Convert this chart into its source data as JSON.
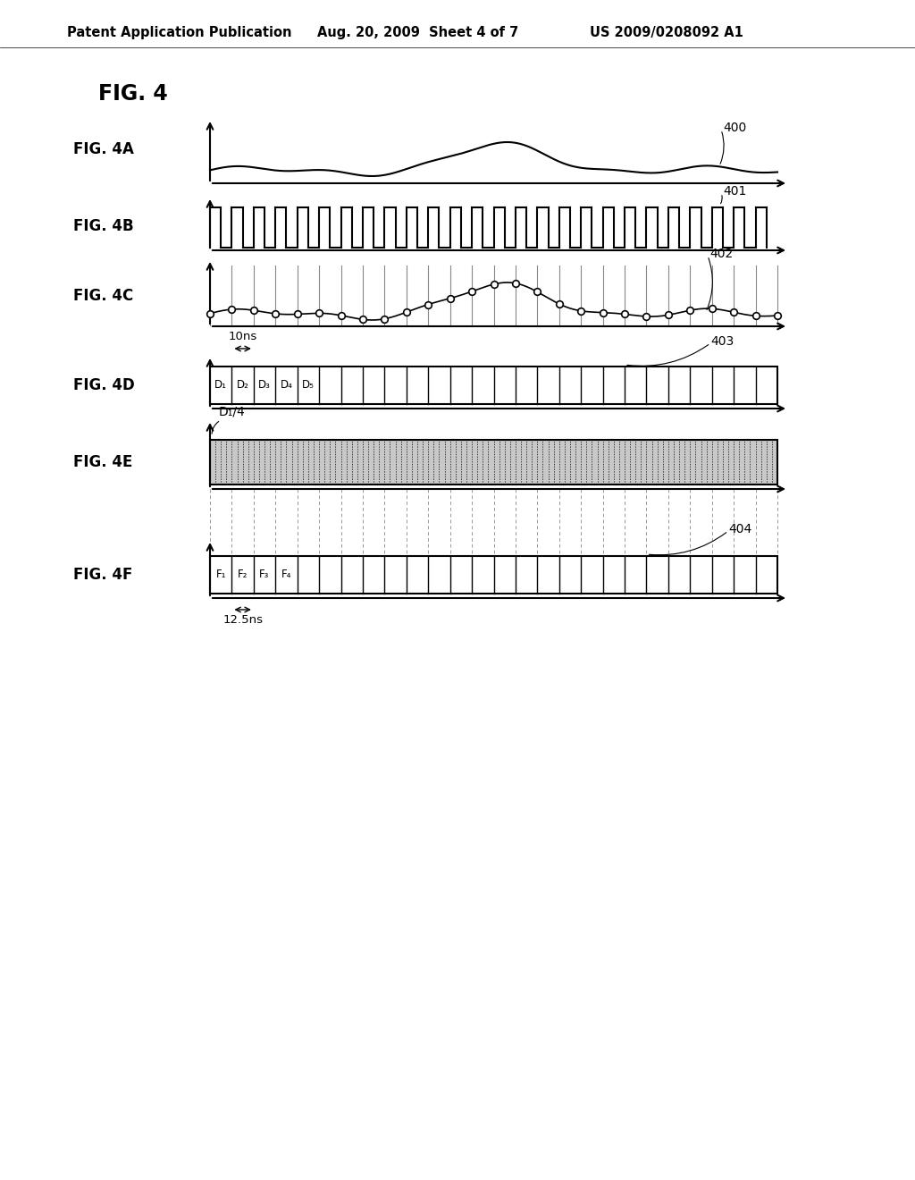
{
  "title": "FIG. 4",
  "header_left": "Patent Application Publication",
  "header_center": "Aug. 20, 2009  Sheet 4 of 7",
  "header_right": "US 2009/0208092 A1",
  "background_color": "#ffffff",
  "annotation_10ns": "10ns",
  "annotation_125ns": "12.5ns",
  "d_label": "D₁/4",
  "d_cells": [
    "D₁",
    "D₂",
    "D₃",
    "D₄",
    "D₅"
  ],
  "f_cells": [
    "F₁",
    "F₂",
    "F₃",
    "F₄"
  ],
  "ref_400": "400",
  "ref_401": "401",
  "ref_402": "402",
  "ref_403": "403",
  "ref_404": "404"
}
